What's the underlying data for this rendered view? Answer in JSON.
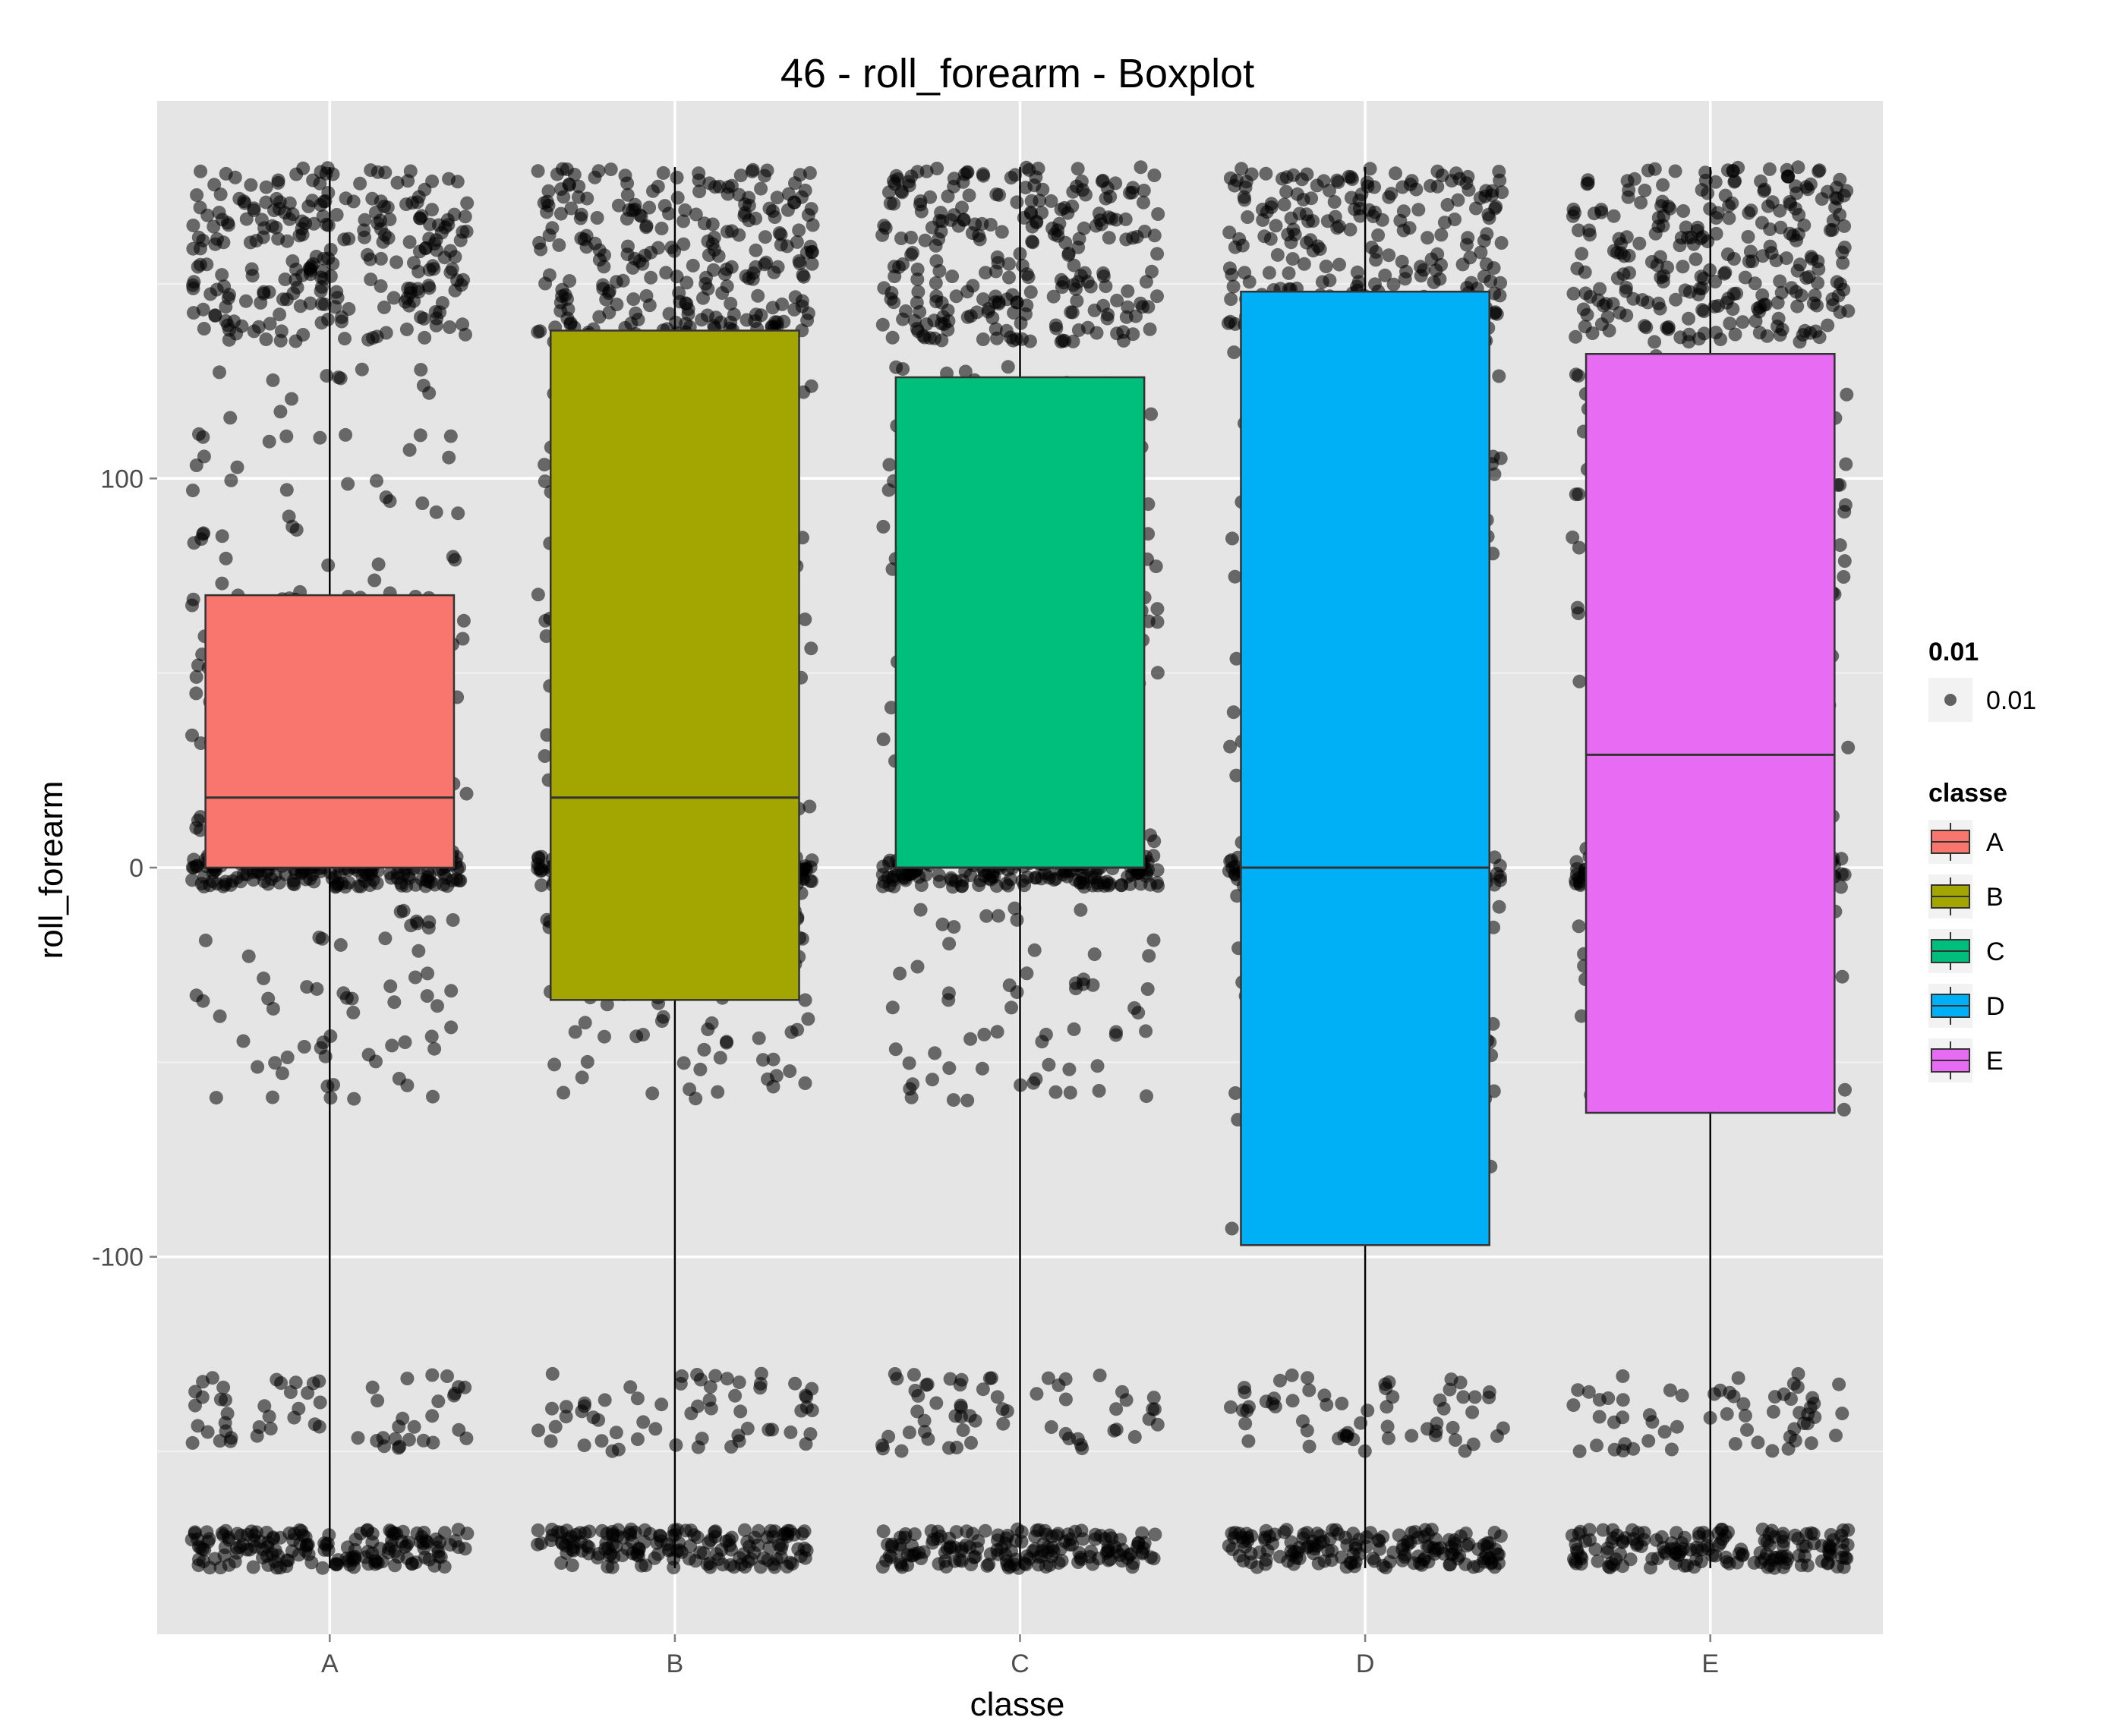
{
  "chart_data": {
    "type": "boxplot",
    "title": "46 - roll_forearm - Boxplot",
    "xlabel": "classe",
    "ylabel": "roll_forearm",
    "categories": [
      "A",
      "B",
      "C",
      "D",
      "E"
    ],
    "ylim": [
      -197,
      197
    ],
    "yticks": [
      -100,
      0,
      100
    ],
    "grid": true,
    "jitter_points": true,
    "boxes": [
      {
        "category": "A",
        "q1": 0,
        "median": 18,
        "q3": 70,
        "whisker_low": -180,
        "whisker_high": 180,
        "color": "#F8766D"
      },
      {
        "category": "B",
        "q1": -34,
        "median": 18,
        "q3": 138,
        "whisker_low": -180,
        "whisker_high": 180,
        "color": "#A3A500"
      },
      {
        "category": "C",
        "q1": 0,
        "median": 0,
        "q3": 126,
        "whisker_low": -180,
        "whisker_high": 180,
        "color": "#00BF7D"
      },
      {
        "category": "D",
        "q1": -97,
        "median": 0,
        "q3": 148,
        "whisker_low": -180,
        "whisker_high": 180,
        "color": "#00B0F6"
      },
      {
        "category": "E",
        "q1": -63,
        "median": 29,
        "q3": 132,
        "whisker_low": -180,
        "whisker_high": 180,
        "color": "#E76BF3"
      }
    ],
    "legend": {
      "position": "right",
      "size_title": "0.01",
      "size_label": "0.01",
      "fill_title": "classe",
      "fill_labels": [
        "A",
        "B",
        "C",
        "D",
        "E"
      ]
    }
  }
}
